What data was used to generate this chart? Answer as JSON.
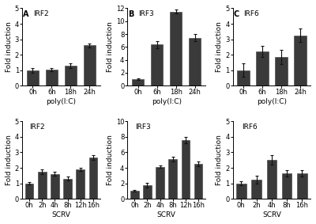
{
  "top_row": [
    {
      "label": "A",
      "title": "IRF2",
      "xlabel": "poly(I:C)",
      "categories": [
        "0h",
        "6h",
        "18h",
        "24h"
      ],
      "values": [
        1.0,
        1.05,
        1.3,
        2.6
      ],
      "errors": [
        0.15,
        0.1,
        0.15,
        0.12
      ],
      "ylim": [
        0,
        5
      ],
      "yticks": [
        0,
        1,
        2,
        3,
        4,
        5
      ]
    },
    {
      "label": "B",
      "title": "IRF3",
      "xlabel": "poly(I:C)",
      "categories": [
        "0h",
        "6h",
        "18h",
        "24h"
      ],
      "values": [
        1.0,
        6.4,
        11.5,
        7.4
      ],
      "errors": [
        0.08,
        0.55,
        0.3,
        0.55
      ],
      "ylim": [
        0,
        12
      ],
      "yticks": [
        0,
        2,
        4,
        6,
        8,
        10,
        12
      ]
    },
    {
      "label": "C",
      "title": "IRF6",
      "xlabel": "poly(I:C)",
      "categories": [
        "0h",
        "6h",
        "18h",
        "24h"
      ],
      "values": [
        1.0,
        2.2,
        1.85,
        3.25
      ],
      "errors": [
        0.45,
        0.35,
        0.45,
        0.45
      ],
      "ylim": [
        0,
        5
      ],
      "yticks": [
        0,
        1,
        2,
        3,
        4,
        5
      ]
    }
  ],
  "bottom_row": [
    {
      "label": "",
      "title": "IRF2",
      "xlabel": "SCRV",
      "categories": [
        "0h",
        "2h",
        "4h",
        "8h",
        "12h",
        "16h"
      ],
      "values": [
        1.0,
        1.75,
        1.6,
        1.3,
        1.9,
        2.65
      ],
      "errors": [
        0.08,
        0.15,
        0.12,
        0.12,
        0.12,
        0.15
      ],
      "ylim": [
        0,
        5
      ],
      "yticks": [
        0,
        1,
        2,
        3,
        4,
        5
      ]
    },
    {
      "label": "",
      "title": "IRF3",
      "xlabel": "SCRV",
      "categories": [
        "0h",
        "2h",
        "4h",
        "8h",
        "12h",
        "16h"
      ],
      "values": [
        1.0,
        1.75,
        4.15,
        5.1,
        7.6,
        4.5
      ],
      "errors": [
        0.1,
        0.35,
        0.2,
        0.3,
        0.4,
        0.3
      ],
      "ylim": [
        0,
        10
      ],
      "yticks": [
        0,
        2,
        4,
        6,
        8,
        10
      ]
    },
    {
      "label": "",
      "title": "IRF6",
      "xlabel": "SCRV",
      "categories": [
        "0h",
        "2h",
        "4h",
        "8h",
        "16h"
      ],
      "values": [
        1.0,
        1.25,
        2.5,
        1.65,
        1.65
      ],
      "errors": [
        0.12,
        0.25,
        0.3,
        0.2,
        0.2
      ],
      "ylim": [
        0,
        5
      ],
      "yticks": [
        0,
        1,
        2,
        3,
        4,
        5
      ]
    }
  ],
  "bar_color": "#3a3a3a",
  "bar_edge_color": "#3a3a3a",
  "error_color": "#111111",
  "ylabel": "Fold induction",
  "background_color": "#ffffff",
  "title_fontsize": 6.5,
  "label_fontsize": 6.5,
  "tick_fontsize": 6,
  "bold_fontsize": 7
}
